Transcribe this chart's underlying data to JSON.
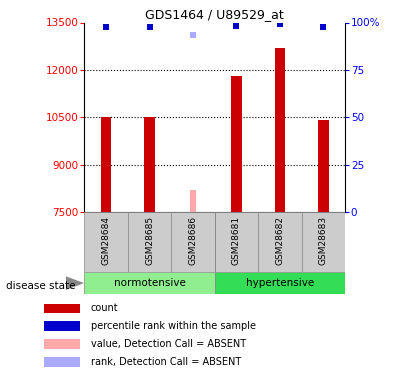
{
  "title": "GDS1464 / U89529_at",
  "samples": [
    "GSM28684",
    "GSM28685",
    "GSM28686",
    "GSM28681",
    "GSM28682",
    "GSM28683"
  ],
  "bar_values": [
    10500,
    10500,
    null,
    11800,
    12700,
    10400
  ],
  "absent_bar_value": 8200,
  "absent_bar_index": 2,
  "rank_values": [
    13350,
    13350,
    null,
    13400,
    13450,
    13350
  ],
  "absent_rank_value": 13100,
  "absent_rank_index": 2,
  "bar_color": "#cc0000",
  "absent_bar_color": "#ffaaaa",
  "rank_color": "#0000cc",
  "absent_rank_color": "#aaaaff",
  "ymin": 7500,
  "ymax": 13500,
  "yticks_left": [
    7500,
    9000,
    10500,
    12000,
    13500
  ],
  "yticks_right_labels": [
    "0",
    "25",
    "50",
    "75",
    "100%"
  ],
  "yticks_right_values": [
    7500,
    9000,
    10500,
    12000,
    13500
  ],
  "grid_values": [
    9000,
    10500,
    12000
  ],
  "normotensive_color": "#90ee90",
  "hypertensive_color": "#33dd55",
  "label_bg_color": "#cccccc",
  "disease_state_label": "disease state",
  "normotensive_label": "normotensive",
  "hypertensive_label": "hypertensive",
  "legend_items": [
    {
      "label": "count",
      "color": "#cc0000"
    },
    {
      "label": "percentile rank within the sample",
      "color": "#0000cc"
    },
    {
      "label": "value, Detection Call = ABSENT",
      "color": "#ffaaaa"
    },
    {
      "label": "rank, Detection Call = ABSENT",
      "color": "#aaaaff"
    }
  ],
  "bar_width": 0.25
}
